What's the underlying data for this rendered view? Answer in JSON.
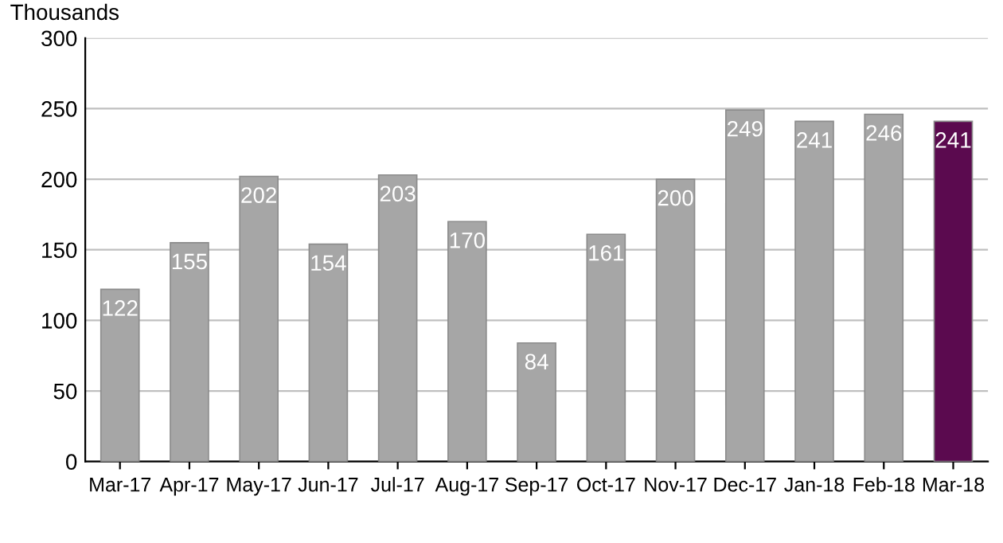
{
  "chart_data": {
    "type": "bar",
    "ylabel": "Thousands",
    "categories": [
      "Mar-17",
      "Apr-17",
      "May-17",
      "Jun-17",
      "Jul-17",
      "Aug-17",
      "Sep-17",
      "Oct-17",
      "Nov-17",
      "Dec-17",
      "Jan-18",
      "Feb-18",
      "Mar-18"
    ],
    "values": [
      122,
      155,
      202,
      154,
      203,
      170,
      84,
      161,
      200,
      249,
      241,
      246,
      241
    ],
    "colors": [
      "#a6a6a6",
      "#a6a6a6",
      "#a6a6a6",
      "#a6a6a6",
      "#a6a6a6",
      "#a6a6a6",
      "#a6a6a6",
      "#a6a6a6",
      "#a6a6a6",
      "#a6a6a6",
      "#a6a6a6",
      "#a6a6a6",
      "#5b0a4f"
    ],
    "ylim": [
      0,
      300
    ],
    "yticks": [
      0,
      50,
      100,
      150,
      200,
      250,
      300
    ],
    "grid": "y",
    "data_labels": true,
    "legend": false
  }
}
